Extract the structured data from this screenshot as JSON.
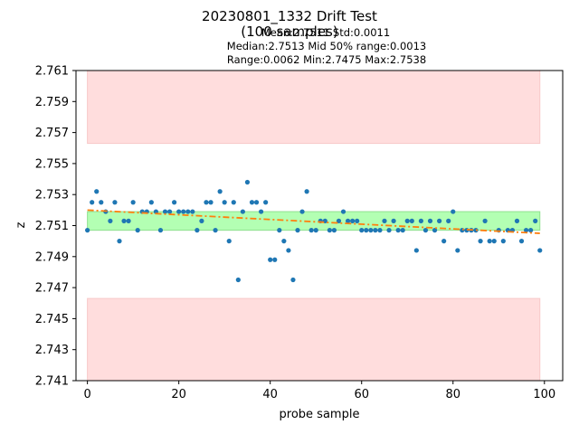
{
  "chart_data": {
    "type": "scatter",
    "title_line1": "20230801_1332 Drift Test",
    "title_line2": "(100 samples)",
    "stats_line1": "Mean:2.7511  Std:0.0011",
    "stats_line2": "Median:2.7513  Mid 50% range:0.0013",
    "stats_line3": "Range:0.0062  Min:2.7475  Max:2.7538",
    "xlabel": "probe sample",
    "ylabel": "z",
    "xlim": [
      -2.5,
      104
    ],
    "ylim": [
      2.741,
      2.761
    ],
    "xticks": [
      0,
      20,
      40,
      60,
      80,
      100
    ],
    "xtick_labels": [
      "0",
      "20",
      "40",
      "60",
      "80",
      "100"
    ],
    "yticks": [
      2.741,
      2.743,
      2.745,
      2.747,
      2.749,
      2.751,
      2.753,
      2.755,
      2.757,
      2.759,
      2.761
    ],
    "ytick_labels": [
      "2.741",
      "2.743",
      "2.745",
      "2.747",
      "2.749",
      "2.751",
      "2.753",
      "2.755",
      "2.757",
      "2.759",
      "2.761"
    ],
    "bands": [
      {
        "name": "upper-limit-band",
        "x": [
          0,
          99
        ],
        "y": [
          2.7563,
          2.761
        ],
        "color": "#ffdddd"
      },
      {
        "name": "lower-limit-band",
        "x": [
          0,
          99
        ],
        "y": [
          2.741,
          2.7463
        ],
        "color": "#ffdddd"
      },
      {
        "name": "mid50-band",
        "x": [
          0,
          99
        ],
        "y": [
          2.7507,
          2.7519
        ],
        "color": "#b3ffb3"
      }
    ],
    "trend": {
      "x": [
        0,
        99
      ],
      "y": [
        2.752,
        2.7505
      ],
      "color": "#ff7f0e"
    },
    "point_color": "#1f77b4",
    "series": [
      {
        "name": "z",
        "x": [
          0,
          1,
          2,
          3,
          4,
          5,
          6,
          7,
          8,
          9,
          10,
          11,
          12,
          13,
          14,
          15,
          16,
          17,
          18,
          19,
          20,
          21,
          22,
          23,
          24,
          25,
          26,
          27,
          28,
          29,
          30,
          31,
          32,
          33,
          34,
          35,
          36,
          37,
          38,
          39,
          40,
          41,
          42,
          43,
          44,
          45,
          46,
          47,
          48,
          49,
          50,
          51,
          52,
          53,
          54,
          55,
          56,
          57,
          58,
          59,
          60,
          61,
          62,
          63,
          64,
          65,
          66,
          67,
          68,
          69,
          70,
          71,
          72,
          73,
          74,
          75,
          76,
          77,
          78,
          79,
          80,
          81,
          82,
          83,
          84,
          85,
          86,
          87,
          88,
          89,
          90,
          91,
          92,
          93,
          94,
          95,
          96,
          97,
          98,
          99
        ],
        "values": [
          2.7507,
          2.7525,
          2.7532,
          2.7525,
          2.7519,
          2.7513,
          2.7525,
          2.75,
          2.7513,
          2.7513,
          2.7525,
          2.7507,
          2.7519,
          2.7519,
          2.7525,
          2.7519,
          2.7507,
          2.7519,
          2.7519,
          2.7525,
          2.7519,
          2.7519,
          2.7519,
          2.7519,
          2.7507,
          2.7513,
          2.7525,
          2.7525,
          2.7507,
          2.7532,
          2.7525,
          2.75,
          2.7525,
          2.7475,
          2.7519,
          2.7538,
          2.7525,
          2.7525,
          2.7519,
          2.7525,
          2.7488,
          2.7488,
          2.7507,
          2.75,
          2.7494,
          2.7475,
          2.7507,
          2.7519,
          2.7532,
          2.7507,
          2.7507,
          2.7513,
          2.7513,
          2.7507,
          2.7507,
          2.7513,
          2.7519,
          2.7513,
          2.7513,
          2.7513,
          2.7507,
          2.7507,
          2.7507,
          2.7507,
          2.7507,
          2.7513,
          2.7507,
          2.7513,
          2.7507,
          2.7507,
          2.7513,
          2.7513,
          2.7494,
          2.7513,
          2.7507,
          2.7513,
          2.7507,
          2.7513,
          2.75,
          2.7513,
          2.7519,
          2.7494,
          2.7507,
          2.7507,
          2.7507,
          2.7507,
          2.75,
          2.7513,
          2.75,
          2.75,
          2.7507,
          2.75,
          2.7507,
          2.7507,
          2.7513,
          2.75,
          2.7507,
          2.7507,
          2.7513,
          2.7494
        ]
      }
    ]
  }
}
